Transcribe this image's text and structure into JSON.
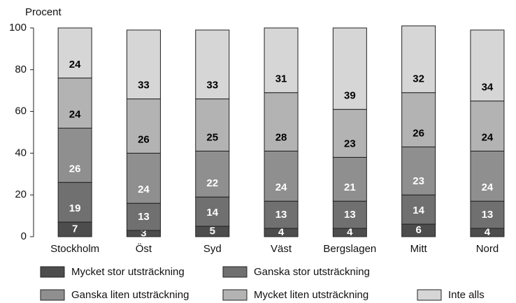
{
  "chart_data": {
    "type": "stacked_bar",
    "y_axis_label": "Procent",
    "categories": [
      "Stockholm",
      "Öst",
      "Syd",
      "Väst",
      "Bergslagen",
      "Mitt",
      "Nord"
    ],
    "series": [
      {
        "name": "Mycket stor utsträckning",
        "color": "#4d4d4d",
        "values": [
          7,
          3,
          5,
          4,
          4,
          6,
          4
        ]
      },
      {
        "name": "Ganska stor utsträckning",
        "color": "#707070",
        "values": [
          19,
          13,
          14,
          13,
          13,
          14,
          13
        ]
      },
      {
        "name": "Ganska liten utsträckning",
        "color": "#8f8f8f",
        "values": [
          26,
          24,
          22,
          24,
          21,
          23,
          24
        ]
      },
      {
        "name": "Mycket liten utsträckning",
        "color": "#b3b3b3",
        "values": [
          24,
          26,
          25,
          28,
          23,
          26,
          24
        ]
      },
      {
        "name": "Inte alls",
        "color": "#d6d6d6",
        "values": [
          24,
          33,
          33,
          31,
          39,
          32,
          34
        ]
      }
    ],
    "ylim": [
      0,
      100
    ],
    "yticks": [
      0,
      20,
      40,
      60,
      80,
      100
    ],
    "grid": false
  }
}
